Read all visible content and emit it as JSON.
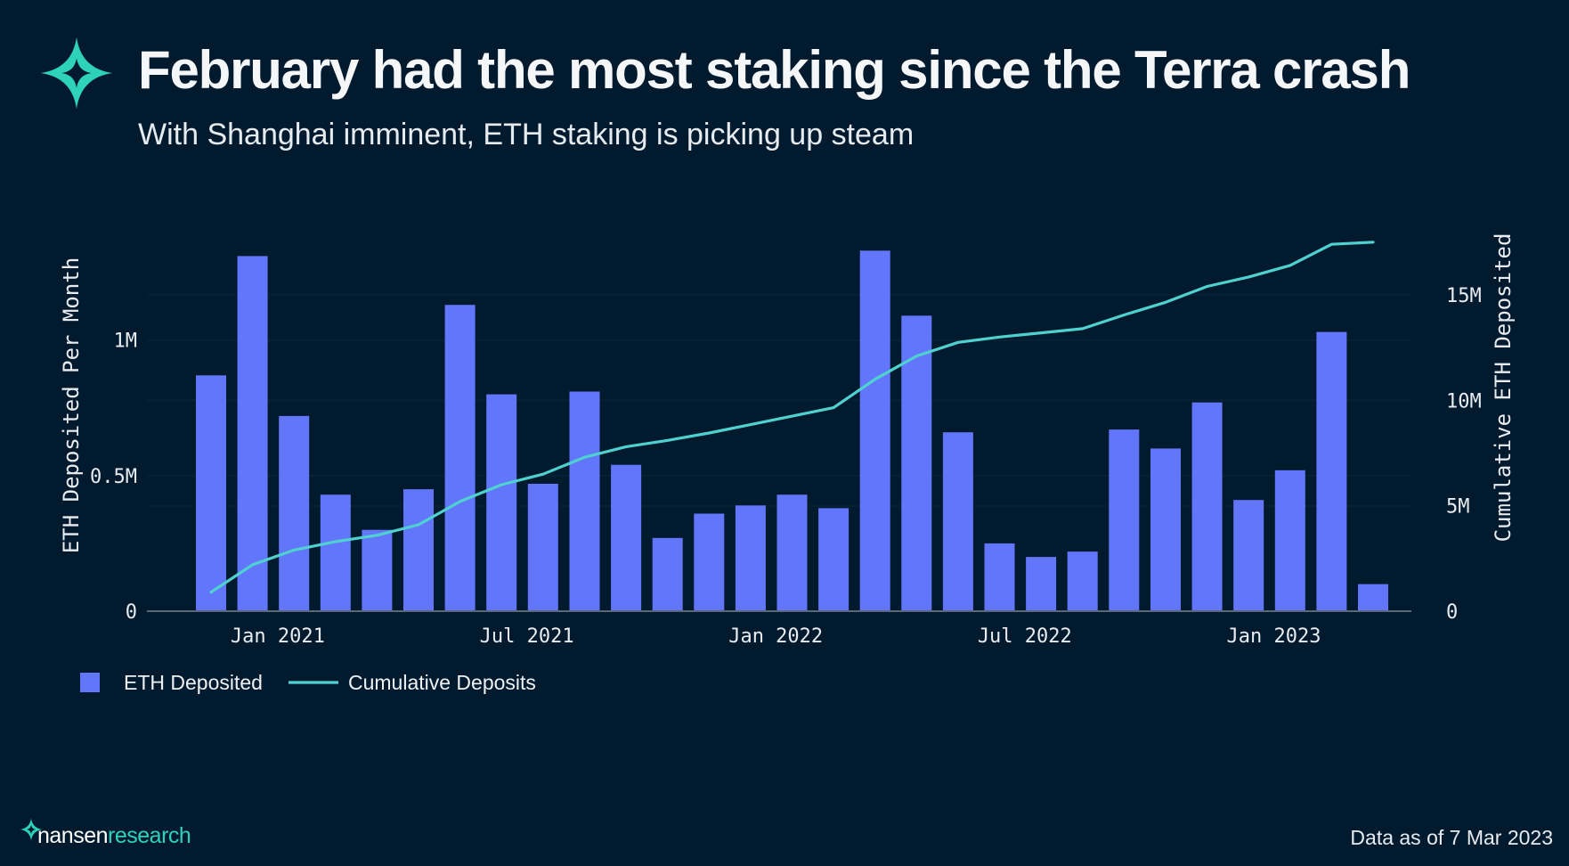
{
  "header": {
    "title": "February had the most staking since the Terra crash",
    "subtitle": "With Shanghai imminent, ETH staking is picking up steam"
  },
  "footer": {
    "brand_primary": "nansen",
    "brand_secondary": "research",
    "data_as_of": "Data as of 7 Mar 2023"
  },
  "colors": {
    "background": "#021a2e",
    "bar": "#6276fb",
    "line": "#4fd1d0",
    "brand_accent": "#2ed3b7"
  },
  "icons": {
    "logo": "nansen-star-logo-icon"
  },
  "chart_data": {
    "type": "bar",
    "x_tick_labels": [
      "Jan 2021",
      "Jul 2021",
      "Jan 2022",
      "Jul 2022",
      "Jan 2023"
    ],
    "x_tick_positions": [
      "2021-01",
      "2021-07",
      "2022-01",
      "2022-07",
      "2023-01"
    ],
    "ylabel": "ETH Deposited Per Month",
    "y2label": "Cumulative ETH Deposited",
    "ylim": [
      0,
      1.4
    ],
    "y_ticks": [
      0,
      0.5,
      1
    ],
    "y_tick_labels": [
      "0",
      "0.5M",
      "1M"
    ],
    "y2lim": [
      0,
      18
    ],
    "y2_ticks": [
      0,
      5,
      10,
      15
    ],
    "y2_tick_labels": [
      "0",
      "5M",
      "10M",
      "15M"
    ],
    "grid": true,
    "legend_position": "bottom-left",
    "categories": [
      "2020-11",
      "2020-12",
      "2021-01",
      "2021-02",
      "2021-03",
      "2021-04",
      "2021-05",
      "2021-06",
      "2021-07",
      "2021-08",
      "2021-09",
      "2021-10",
      "2021-11",
      "2021-12",
      "2022-01",
      "2022-02",
      "2022-03",
      "2022-04",
      "2022-05",
      "2022-06",
      "2022-07",
      "2022-08",
      "2022-09",
      "2022-10",
      "2022-11",
      "2022-12",
      "2023-01",
      "2023-02",
      "2023-03"
    ],
    "series": [
      {
        "name": "ETH Deposited",
        "type": "bar",
        "axis": "left",
        "unit": "M ETH",
        "values": [
          0.87,
          1.31,
          0.72,
          0.43,
          0.3,
          0.45,
          1.13,
          0.8,
          0.47,
          0.81,
          0.54,
          0.27,
          0.36,
          0.39,
          0.43,
          0.38,
          1.33,
          1.09,
          0.66,
          0.25,
          0.2,
          0.22,
          0.67,
          0.6,
          0.77,
          0.41,
          0.52,
          1.03,
          0.1
        ]
      },
      {
        "name": "Cumulative Deposits",
        "type": "line",
        "axis": "right",
        "unit": "M ETH",
        "values": [
          0.9,
          2.2,
          2.9,
          3.3,
          3.6,
          4.1,
          5.2,
          6.0,
          6.5,
          7.3,
          7.8,
          8.1,
          8.45,
          8.85,
          9.25,
          9.65,
          11.0,
          12.1,
          12.75,
          13.0,
          13.2,
          13.4,
          14.05,
          14.65,
          15.4,
          15.85,
          16.4,
          17.4,
          17.5
        ]
      }
    ]
  }
}
